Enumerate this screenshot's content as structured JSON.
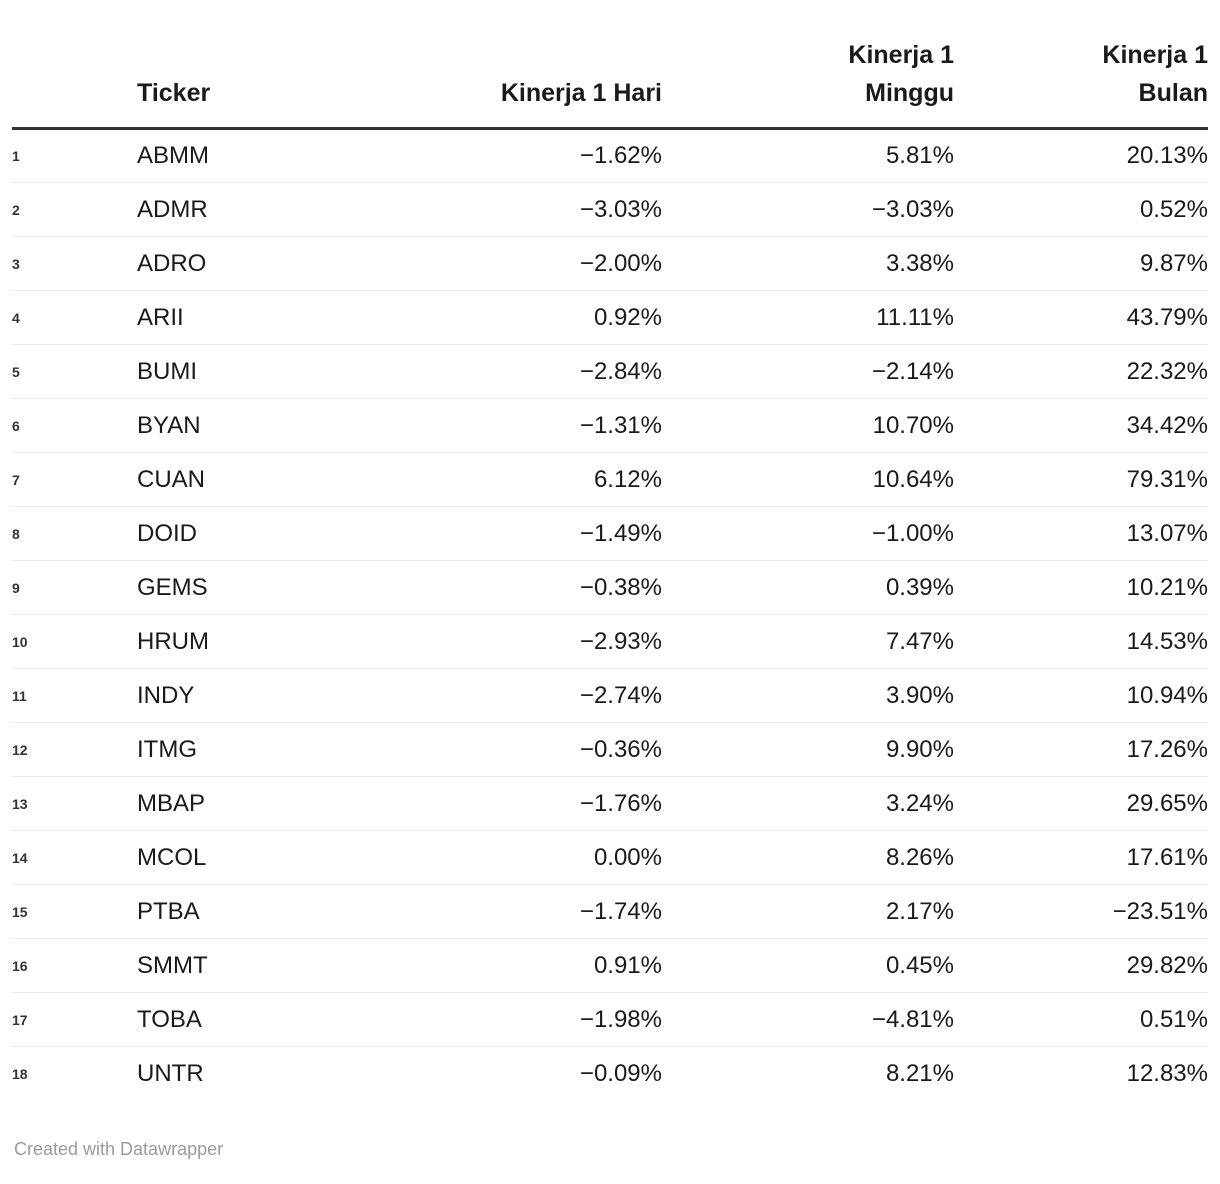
{
  "table": {
    "headers": {
      "num": "",
      "ticker": "Ticker",
      "hari": "Kinerja 1 Hari",
      "minggu": "Kinerja 1\nMinggu",
      "bulan": "Kinerja 1\nBulan"
    },
    "rows": [
      {
        "num": "1",
        "ticker": "ABMM",
        "hari": "−1.62%",
        "minggu": "5.81%",
        "bulan": "20.13%"
      },
      {
        "num": "2",
        "ticker": "ADMR",
        "hari": "−3.03%",
        "minggu": "−3.03%",
        "bulan": "0.52%"
      },
      {
        "num": "3",
        "ticker": "ADRO",
        "hari": "−2.00%",
        "minggu": "3.38%",
        "bulan": "9.87%"
      },
      {
        "num": "4",
        "ticker": "ARII",
        "hari": "0.92%",
        "minggu": "11.11%",
        "bulan": "43.79%"
      },
      {
        "num": "5",
        "ticker": "BUMI",
        "hari": "−2.84%",
        "minggu": "−2.14%",
        "bulan": "22.32%"
      },
      {
        "num": "6",
        "ticker": "BYAN",
        "hari": "−1.31%",
        "minggu": "10.70%",
        "bulan": "34.42%"
      },
      {
        "num": "7",
        "ticker": "CUAN",
        "hari": "6.12%",
        "minggu": "10.64%",
        "bulan": "79.31%"
      },
      {
        "num": "8",
        "ticker": "DOID",
        "hari": "−1.49%",
        "minggu": "−1.00%",
        "bulan": "13.07%"
      },
      {
        "num": "9",
        "ticker": "GEMS",
        "hari": "−0.38%",
        "minggu": "0.39%",
        "bulan": "10.21%"
      },
      {
        "num": "10",
        "ticker": "HRUM",
        "hari": "−2.93%",
        "minggu": "7.47%",
        "bulan": "14.53%"
      },
      {
        "num": "11",
        "ticker": "INDY",
        "hari": "−2.74%",
        "minggu": "3.90%",
        "bulan": "10.94%"
      },
      {
        "num": "12",
        "ticker": "ITMG",
        "hari": "−0.36%",
        "minggu": "9.90%",
        "bulan": "17.26%"
      },
      {
        "num": "13",
        "ticker": "MBAP",
        "hari": "−1.76%",
        "minggu": "3.24%",
        "bulan": "29.65%"
      },
      {
        "num": "14",
        "ticker": "MCOL",
        "hari": "0.00%",
        "minggu": "8.26%",
        "bulan": "17.61%"
      },
      {
        "num": "15",
        "ticker": "PTBA",
        "hari": "−1.74%",
        "minggu": "2.17%",
        "bulan": "−23.51%"
      },
      {
        "num": "16",
        "ticker": "SMMT",
        "hari": "0.91%",
        "minggu": "0.45%",
        "bulan": "29.82%"
      },
      {
        "num": "17",
        "ticker": "TOBA",
        "hari": "−1.98%",
        "minggu": "−4.81%",
        "bulan": "0.51%"
      },
      {
        "num": "18",
        "ticker": "UNTR",
        "hari": "−0.09%",
        "minggu": "8.21%",
        "bulan": "12.83%"
      }
    ]
  },
  "footer": {
    "credit": "Created with Datawrapper"
  },
  "colors": {
    "header_rule": "#333333",
    "row_separator": "#e8e8e8",
    "body_text": "#1a1a1a",
    "row_number_text": "#333333",
    "credit_text": "#9b9b9b",
    "background": "#ffffff"
  }
}
